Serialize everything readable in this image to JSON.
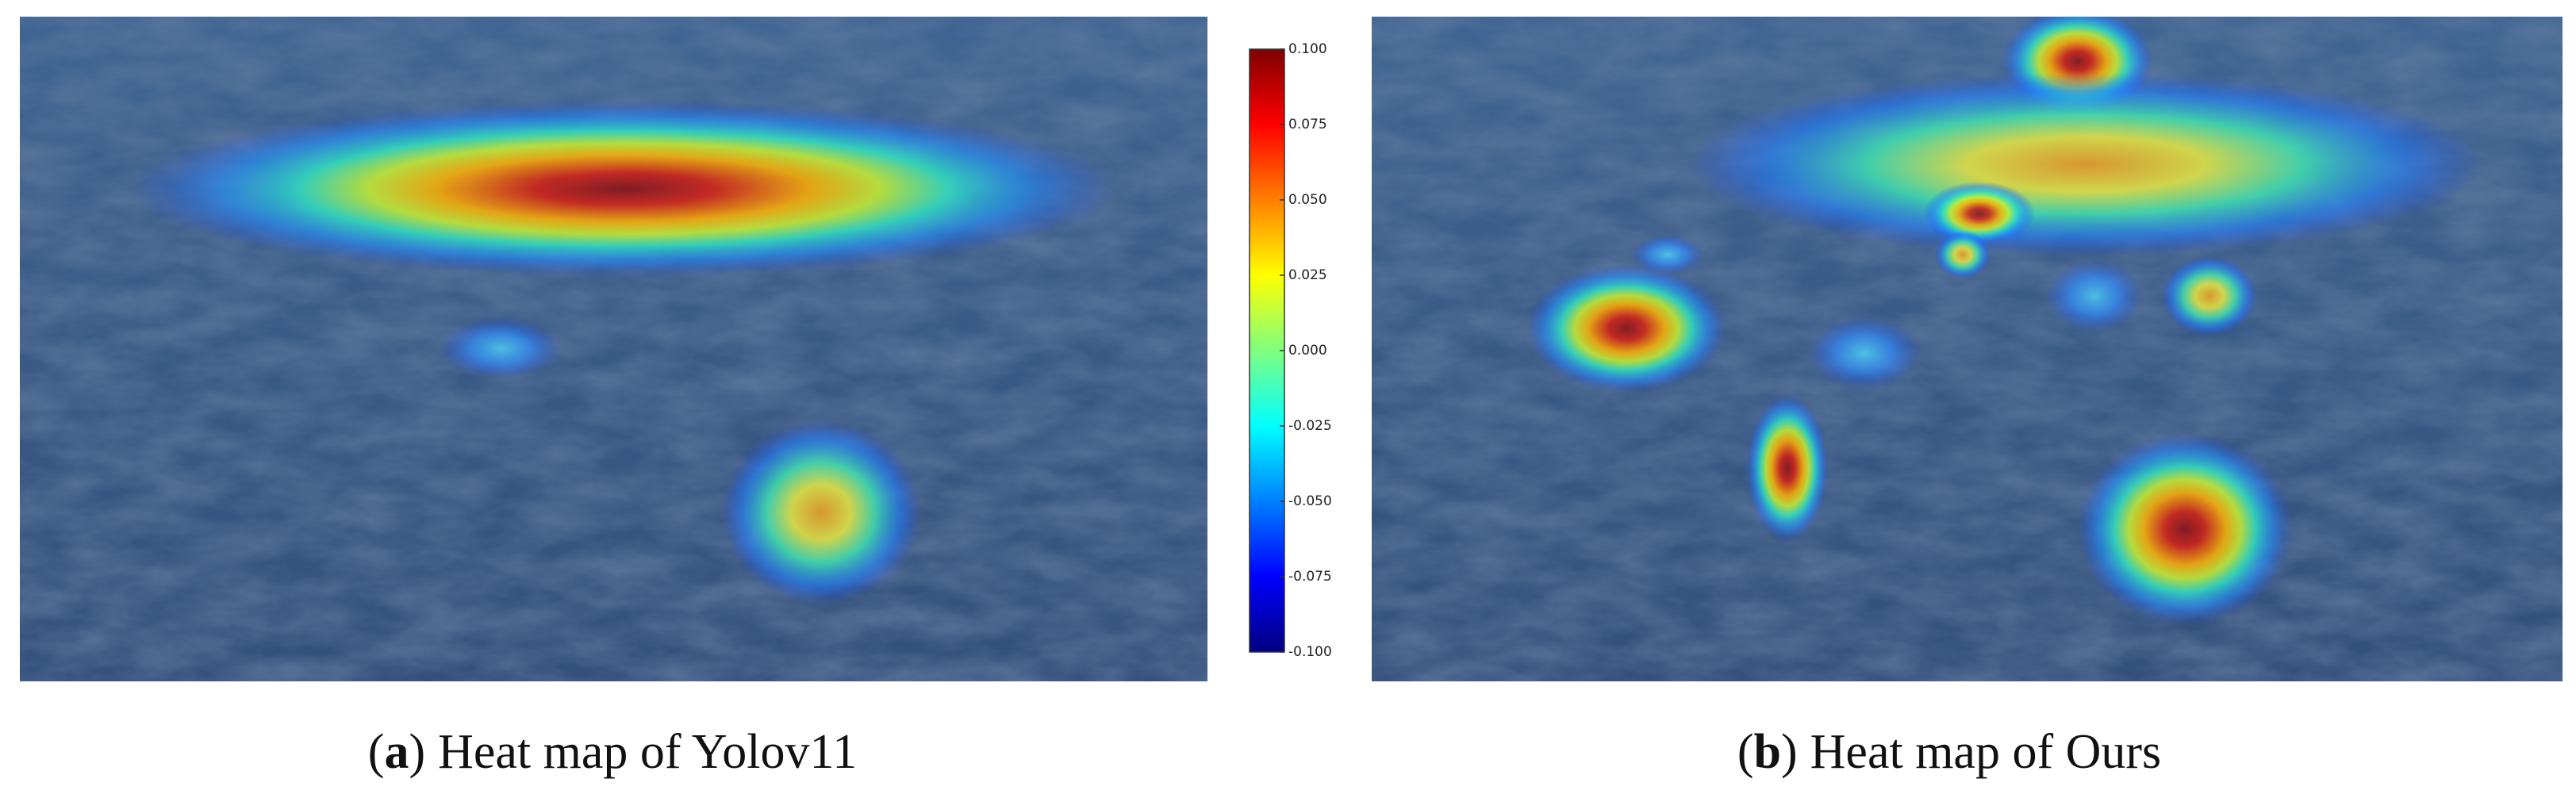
{
  "colorbar": {
    "lim": [
      -0.1,
      0.1
    ],
    "ticks": [
      {
        "value": 0.1,
        "label": "0.100"
      },
      {
        "value": 0.075,
        "label": "0.075"
      },
      {
        "value": 0.05,
        "label": "0.050"
      },
      {
        "value": 0.025,
        "label": "0.025"
      },
      {
        "value": 0,
        "label": "0.000"
      },
      {
        "value": -0.025,
        "label": "-0.025"
      },
      {
        "value": -0.05,
        "label": "-0.050"
      },
      {
        "value": -0.075,
        "label": "-0.075"
      },
      {
        "value": -0.1,
        "label": "-0.100"
      }
    ]
  },
  "panels": [
    {
      "prefix": "(",
      "label": "a",
      "suffix": ")",
      "caption": "Heat map of Yolov11"
    },
    {
      "prefix": "(",
      "label": "b",
      "suffix": ")",
      "caption": "Heat map of Ours"
    }
  ]
}
